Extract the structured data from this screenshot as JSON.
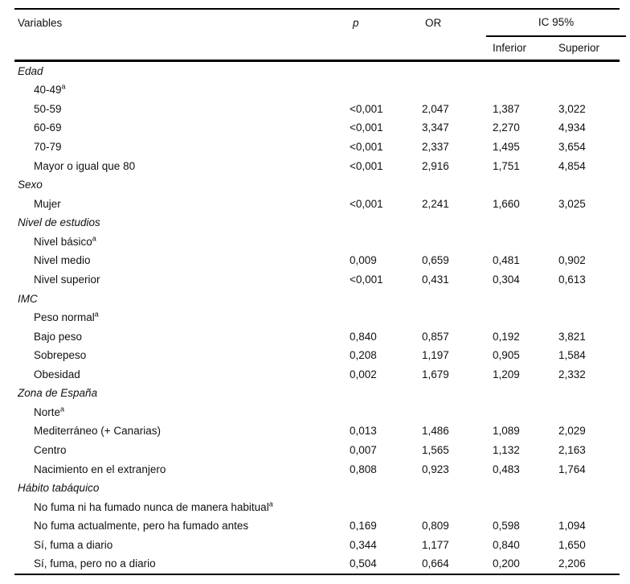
{
  "header": {
    "variables": "Variables",
    "p": "p",
    "or": "OR",
    "ic95": "IC 95%",
    "inferior": "Inferior",
    "superior": "Superior"
  },
  "colors": {
    "text": "#111111",
    "rule": "#000000",
    "background": "#ffffff"
  },
  "rows": [
    {
      "style": "group",
      "label": "Edad"
    },
    {
      "style": "item",
      "label": "40-49",
      "superscript": "a"
    },
    {
      "style": "item",
      "label": "50-59",
      "p": "<0,001",
      "or": "2,047",
      "inferior": "1,387",
      "superior": "3,022"
    },
    {
      "style": "item",
      "label": "60-69",
      "p": "<0,001",
      "or": "3,347",
      "inferior": "2,270",
      "superior": "4,934"
    },
    {
      "style": "item",
      "label": "70-79",
      "p": "<0,001",
      "or": "2,337",
      "inferior": "1,495",
      "superior": "3,654"
    },
    {
      "style": "item",
      "label": "Mayor o igual que 80",
      "p": "<0,001",
      "or": "2,916",
      "inferior": "1,751",
      "superior": "4,854"
    },
    {
      "style": "group",
      "label": "Sexo"
    },
    {
      "style": "item",
      "label": "Mujer",
      "p": "<0,001",
      "or": "2,241",
      "inferior": "1,660",
      "superior": "3,025"
    },
    {
      "style": "group",
      "label": "Nivel de estudios"
    },
    {
      "style": "item",
      "label": "Nivel básico",
      "superscript": "a"
    },
    {
      "style": "item",
      "label": "Nivel medio",
      "p": "0,009",
      "or": "0,659",
      "inferior": "0,481",
      "superior": "0,902"
    },
    {
      "style": "item",
      "label": "Nivel superior",
      "p": "<0,001",
      "or": "0,431",
      "inferior": "0,304",
      "superior": "0,613"
    },
    {
      "style": "group",
      "label": "IMC"
    },
    {
      "style": "item",
      "label": "Peso normal",
      "superscript": "a"
    },
    {
      "style": "item",
      "label": "Bajo peso",
      "p": "0,840",
      "or": "0,857",
      "inferior": "0,192",
      "superior": "3,821"
    },
    {
      "style": "item",
      "label": "Sobrepeso",
      "p": "0,208",
      "or": "1,197",
      "inferior": "0,905",
      "superior": "1,584"
    },
    {
      "style": "item",
      "label": "Obesidad",
      "p": "0,002",
      "or": "1,679",
      "inferior": "1,209",
      "superior": "2,332"
    },
    {
      "style": "group",
      "label": "Zona de España"
    },
    {
      "style": "item",
      "label": "Norte",
      "superscript": "a"
    },
    {
      "style": "item",
      "label": "Mediterráneo (+ Canarias)",
      "p": "0,013",
      "or": "1,486",
      "inferior": "1,089",
      "superior": "2,029"
    },
    {
      "style": "item",
      "label": "Centro",
      "p": "0,007",
      "or": "1,565",
      "inferior": "1,132",
      "superior": "2,163"
    },
    {
      "style": "item",
      "label": "Nacimiento en el extranjero",
      "p": "0,808",
      "or": "0,923",
      "inferior": "0,483",
      "superior": "1,764"
    },
    {
      "style": "group",
      "label": "Hábito tabáquico"
    },
    {
      "style": "item",
      "label": "No fuma ni ha fumado nunca de manera habitual",
      "superscript": "a"
    },
    {
      "style": "item",
      "label": "No fuma actualmente, pero ha fumado antes",
      "p": "0,169",
      "or": "0,809",
      "inferior": "0,598",
      "superior": "1,094"
    },
    {
      "style": "item",
      "label": "Sí, fuma a diario",
      "p": "0,344",
      "or": "1,177",
      "inferior": "0,840",
      "superior": "1,650"
    },
    {
      "style": "item",
      "label": "Sí, fuma, pero no a diario",
      "p": "0,504",
      "or": "0,664",
      "inferior": "0,200",
      "superior": "2,206"
    }
  ]
}
